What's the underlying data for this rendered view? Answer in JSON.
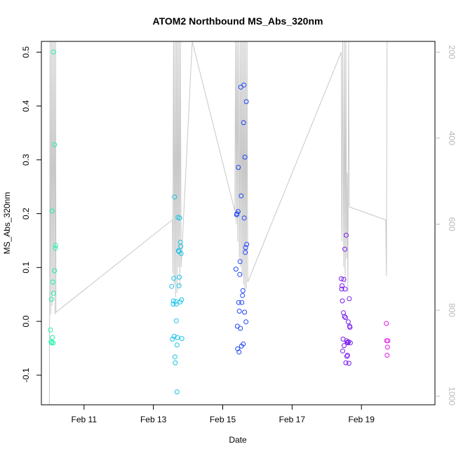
{
  "chart_data": {
    "type": "scatter",
    "title": "ATOM2 Northbound MS_Abs_320nm",
    "xlabel": "Date",
    "ylabel": "MS_Abs_320nm",
    "x_ticks": [
      {
        "day": 11,
        "label": "Feb 11"
      },
      {
        "day": 13,
        "label": "Feb 13"
      },
      {
        "day": 15,
        "label": "Feb 15"
      },
      {
        "day": 17,
        "label": "Feb 17"
      },
      {
        "day": 19,
        "label": "Feb 19"
      }
    ],
    "xlim": [
      9.77,
      21.12
    ],
    "ylim": [
      -0.155,
      0.52
    ],
    "y_ticks": [
      -0.1,
      0.0,
      0.1,
      0.2,
      0.3,
      0.4,
      0.5
    ],
    "y_tick_labels": [
      "-0.1",
      "0.0",
      "0.1",
      "0.2",
      "0.3",
      "0.4",
      "0.5"
    ],
    "y2_label": "",
    "y2lim": [
      1020,
      175
    ],
    "y2_ticks": [
      200,
      400,
      600,
      800,
      1000
    ],
    "y2_tick_labels": [
      "200",
      "400",
      "600",
      "800",
      "1000"
    ],
    "grid": false,
    "legend": "none",
    "colors": {
      "axis": "#000000",
      "secondary_axis": "#b9b9b9",
      "depth_line": "#c8c8c8",
      "cluster_1": "#19f0a5",
      "cluster_2": "#19c3e6",
      "cluster_3": "#1e46f5",
      "cluster_4": "#7819f0",
      "cluster_5": "#e619e6"
    },
    "points": [
      {
        "x": 10.03,
        "y": -0.016,
        "c": "cluster_1"
      },
      {
        "x": 10.05,
        "y": -0.038,
        "c": "cluster_1"
      },
      {
        "x": 10.07,
        "y": -0.04,
        "c": "cluster_1"
      },
      {
        "x": 10.09,
        "y": -0.03,
        "c": "cluster_1"
      },
      {
        "x": 10.11,
        "y": -0.04,
        "c": "cluster_1"
      },
      {
        "x": 10.06,
        "y": 0.041,
        "c": "cluster_1"
      },
      {
        "x": 10.08,
        "y": 0.205,
        "c": "cluster_1"
      },
      {
        "x": 10.1,
        "y": 0.073,
        "c": "cluster_1"
      },
      {
        "x": 10.12,
        "y": 0.052,
        "c": "cluster_1"
      },
      {
        "x": 10.12,
        "y": 0.5,
        "c": "cluster_1"
      },
      {
        "x": 10.15,
        "y": 0.094,
        "c": "cluster_1"
      },
      {
        "x": 10.15,
        "y": 0.328,
        "c": "cluster_1"
      },
      {
        "x": 10.17,
        "y": 0.136,
        "c": "cluster_1"
      },
      {
        "x": 10.18,
        "y": 0.141,
        "c": "cluster_1"
      },
      {
        "x": 13.53,
        "y": 0.065,
        "c": "cluster_2"
      },
      {
        "x": 13.55,
        "y": -0.033,
        "c": "cluster_2"
      },
      {
        "x": 13.57,
        "y": 0.032,
        "c": "cluster_2"
      },
      {
        "x": 13.58,
        "y": 0.038,
        "c": "cluster_2"
      },
      {
        "x": 13.59,
        "y": 0.08,
        "c": "cluster_2"
      },
      {
        "x": 13.6,
        "y": -0.028,
        "c": "cluster_2"
      },
      {
        "x": 13.61,
        "y": 0.231,
        "c": "cluster_2"
      },
      {
        "x": 13.62,
        "y": -0.066,
        "c": "cluster_2"
      },
      {
        "x": 13.63,
        "y": -0.077,
        "c": "cluster_2"
      },
      {
        "x": 13.65,
        "y": 0.037,
        "c": "cluster_2"
      },
      {
        "x": 13.66,
        "y": 0.032,
        "c": "cluster_2"
      },
      {
        "x": 13.66,
        "y": 0.001,
        "c": "cluster_2"
      },
      {
        "x": 13.68,
        "y": -0.044,
        "c": "cluster_2"
      },
      {
        "x": 13.69,
        "y": -0.03,
        "c": "cluster_2"
      },
      {
        "x": 13.68,
        "y": -0.131,
        "c": "cluster_2"
      },
      {
        "x": 13.71,
        "y": 0.193,
        "c": "cluster_2"
      },
      {
        "x": 13.72,
        "y": 0.131,
        "c": "cluster_2"
      },
      {
        "x": 13.74,
        "y": 0.13,
        "c": "cluster_2"
      },
      {
        "x": 13.74,
        "y": 0.066,
        "c": "cluster_2"
      },
      {
        "x": 13.75,
        "y": 0.082,
        "c": "cluster_2"
      },
      {
        "x": 13.76,
        "y": 0.192,
        "c": "cluster_2"
      },
      {
        "x": 13.77,
        "y": 0.036,
        "c": "cluster_2"
      },
      {
        "x": 13.78,
        "y": 0.147,
        "c": "cluster_2"
      },
      {
        "x": 13.79,
        "y": 0.139,
        "c": "cluster_2"
      },
      {
        "x": 13.8,
        "y": 0.126,
        "c": "cluster_2"
      },
      {
        "x": 13.81,
        "y": 0.04,
        "c": "cluster_2"
      },
      {
        "x": 13.82,
        "y": -0.032,
        "c": "cluster_2"
      },
      {
        "x": 15.38,
        "y": 0.097,
        "c": "cluster_3"
      },
      {
        "x": 15.4,
        "y": 0.198,
        "c": "cluster_3"
      },
      {
        "x": 15.41,
        "y": 0.2,
        "c": "cluster_3"
      },
      {
        "x": 15.42,
        "y": -0.009,
        "c": "cluster_3"
      },
      {
        "x": 15.43,
        "y": -0.051,
        "c": "cluster_3"
      },
      {
        "x": 15.44,
        "y": 0.204,
        "c": "cluster_3"
      },
      {
        "x": 15.45,
        "y": 0.286,
        "c": "cluster_3"
      },
      {
        "x": 15.46,
        "y": 0.035,
        "c": "cluster_3"
      },
      {
        "x": 15.47,
        "y": -0.057,
        "c": "cluster_3"
      },
      {
        "x": 15.48,
        "y": 0.019,
        "c": "cluster_3"
      },
      {
        "x": 15.49,
        "y": 0.087,
        "c": "cluster_3"
      },
      {
        "x": 15.5,
        "y": 0.111,
        "c": "cluster_3"
      },
      {
        "x": 15.51,
        "y": -0.013,
        "c": "cluster_3"
      },
      {
        "x": 15.52,
        "y": 0.435,
        "c": "cluster_3"
      },
      {
        "x": 15.53,
        "y": 0.233,
        "c": "cluster_3"
      },
      {
        "x": 15.54,
        "y": -0.046,
        "c": "cluster_3"
      },
      {
        "x": 15.55,
        "y": 0.035,
        "c": "cluster_3"
      },
      {
        "x": 15.57,
        "y": 0.048,
        "c": "cluster_3"
      },
      {
        "x": 15.58,
        "y": 0.057,
        "c": "cluster_3"
      },
      {
        "x": 15.59,
        "y": -0.042,
        "c": "cluster_3"
      },
      {
        "x": 15.6,
        "y": 0.369,
        "c": "cluster_3"
      },
      {
        "x": 15.61,
        "y": 0.439,
        "c": "cluster_3"
      },
      {
        "x": 15.62,
        "y": 0.192,
        "c": "cluster_3"
      },
      {
        "x": 15.63,
        "y": 0.017,
        "c": "cluster_3"
      },
      {
        "x": 15.64,
        "y": 0.305,
        "c": "cluster_3"
      },
      {
        "x": 15.65,
        "y": 0.128,
        "c": "cluster_3"
      },
      {
        "x": 15.66,
        "y": 0.137,
        "c": "cluster_3"
      },
      {
        "x": 15.67,
        "y": -0.001,
        "c": "cluster_3"
      },
      {
        "x": 15.68,
        "y": 0.408,
        "c": "cluster_3"
      },
      {
        "x": 15.69,
        "y": 0.143,
        "c": "cluster_3"
      },
      {
        "x": 18.42,
        "y": 0.079,
        "c": "cluster_4"
      },
      {
        "x": 18.43,
        "y": 0.06,
        "c": "cluster_4"
      },
      {
        "x": 18.44,
        "y": 0.066,
        "c": "cluster_4"
      },
      {
        "x": 18.45,
        "y": 0.038,
        "c": "cluster_4"
      },
      {
        "x": 18.46,
        "y": -0.055,
        "c": "cluster_4"
      },
      {
        "x": 18.47,
        "y": -0.033,
        "c": "cluster_4"
      },
      {
        "x": 18.48,
        "y": 0.016,
        "c": "cluster_4"
      },
      {
        "x": 18.49,
        "y": 0.078,
        "c": "cluster_4"
      },
      {
        "x": 18.5,
        "y": -0.045,
        "c": "cluster_4"
      },
      {
        "x": 18.51,
        "y": 0.009,
        "c": "cluster_4"
      },
      {
        "x": 18.52,
        "y": 0.134,
        "c": "cluster_4"
      },
      {
        "x": 18.53,
        "y": 0.06,
        "c": "cluster_4"
      },
      {
        "x": 18.54,
        "y": 0.007,
        "c": "cluster_4"
      },
      {
        "x": 18.55,
        "y": -0.077,
        "c": "cluster_4"
      },
      {
        "x": 18.56,
        "y": 0.16,
        "c": "cluster_4"
      },
      {
        "x": 18.57,
        "y": -0.036,
        "c": "cluster_4"
      },
      {
        "x": 18.58,
        "y": -0.065,
        "c": "cluster_4"
      },
      {
        "x": 18.59,
        "y": -0.039,
        "c": "cluster_4"
      },
      {
        "x": 18.6,
        "y": -0.063,
        "c": "cluster_4"
      },
      {
        "x": 18.61,
        "y": -0.04,
        "c": "cluster_4"
      },
      {
        "x": 18.62,
        "y": -0.001,
        "c": "cluster_4"
      },
      {
        "x": 18.63,
        "y": -0.038,
        "c": "cluster_4"
      },
      {
        "x": 18.64,
        "y": -0.078,
        "c": "cluster_4"
      },
      {
        "x": 18.65,
        "y": 0.042,
        "c": "cluster_4"
      },
      {
        "x": 18.66,
        "y": -0.009,
        "c": "cluster_4"
      },
      {
        "x": 18.67,
        "y": -0.011,
        "c": "cluster_4"
      },
      {
        "x": 18.68,
        "y": -0.04,
        "c": "cluster_4"
      },
      {
        "x": 19.72,
        "y": -0.004,
        "c": "cluster_5"
      },
      {
        "x": 19.73,
        "y": -0.036,
        "c": "cluster_5"
      },
      {
        "x": 19.74,
        "y": -0.063,
        "c": "cluster_5"
      },
      {
        "x": 19.75,
        "y": -0.048,
        "c": "cluster_5"
      },
      {
        "x": 19.76,
        "y": -0.036,
        "c": "cluster_5"
      }
    ],
    "depth_profile": [
      [
        10.0,
        1020
      ],
      [
        10.02,
        175
      ],
      [
        10.04,
        810
      ],
      [
        10.06,
        175
      ],
      [
        10.08,
        790
      ],
      [
        10.1,
        175
      ],
      [
        10.12,
        760
      ],
      [
        10.14,
        175
      ],
      [
        10.16,
        810
      ],
      [
        10.18,
        175
      ],
      [
        10.19,
        805
      ],
      [
        13.55,
        590
      ],
      [
        13.56,
        715
      ],
      [
        13.58,
        175
      ],
      [
        13.6,
        740
      ],
      [
        13.62,
        175
      ],
      [
        13.64,
        770
      ],
      [
        13.66,
        175
      ],
      [
        13.68,
        760
      ],
      [
        13.7,
        175
      ],
      [
        13.72,
        700
      ],
      [
        13.74,
        175
      ],
      [
        13.76,
        745
      ],
      [
        13.78,
        175
      ],
      [
        13.8,
        700
      ],
      [
        14.12,
        175
      ],
      [
        15.35,
        570
      ],
      [
        15.37,
        175
      ],
      [
        15.39,
        600
      ],
      [
        15.41,
        175
      ],
      [
        15.43,
        640
      ],
      [
        15.45,
        175
      ],
      [
        15.48,
        680
      ],
      [
        15.5,
        175
      ],
      [
        15.52,
        700
      ],
      [
        15.54,
        175
      ],
      [
        15.56,
        720
      ],
      [
        15.58,
        175
      ],
      [
        15.6,
        740
      ],
      [
        15.62,
        175
      ],
      [
        15.64,
        760
      ],
      [
        15.66,
        175
      ],
      [
        15.68,
        750
      ],
      [
        15.7,
        175
      ],
      [
        15.72,
        735
      ],
      [
        18.42,
        200
      ],
      [
        18.43,
        600
      ],
      [
        18.44,
        640
      ],
      [
        18.46,
        175
      ],
      [
        18.49,
        700
      ],
      [
        18.51,
        175
      ],
      [
        18.53,
        740
      ],
      [
        18.55,
        175
      ],
      [
        18.57,
        680
      ],
      [
        18.59,
        480
      ],
      [
        18.61,
        760
      ],
      [
        18.63,
        175
      ],
      [
        18.65,
        560
      ],
      [
        19.7,
        590
      ],
      [
        19.72,
        720
      ],
      [
        19.74,
        175
      ]
    ]
  }
}
